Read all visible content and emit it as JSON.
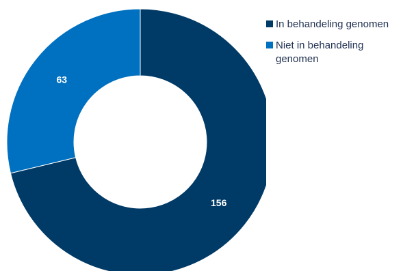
{
  "chart_data": {
    "type": "pie",
    "donut": true,
    "title": "",
    "categories": [
      "In behandeling genomen",
      "Niet in behandeling genomen"
    ],
    "values": [
      156,
      63
    ],
    "colors": [
      "#003a66",
      "#0070c0"
    ],
    "data_labels": [
      "156",
      "63"
    ],
    "legend_placement": "right",
    "start_angle": "top",
    "direction": "clockwise"
  }
}
